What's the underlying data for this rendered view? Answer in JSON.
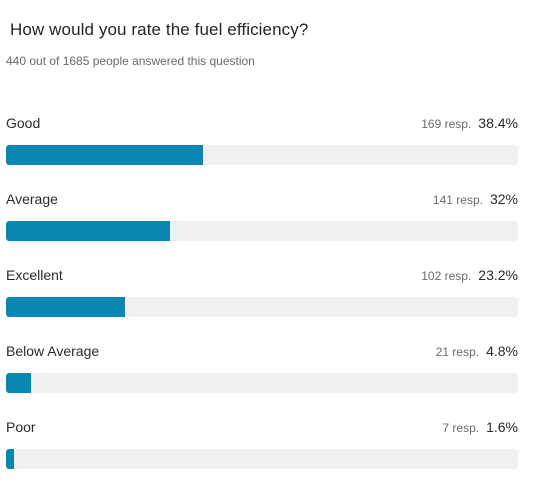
{
  "question": {
    "title": "How would you rate the fuel efficiency?",
    "subtitle": "440 out of 1685 people answered this question"
  },
  "answers": [
    {
      "label": "Good",
      "count": "169 resp.",
      "percent": "38.4%",
      "fraction": 0.384
    },
    {
      "label": "Average",
      "count": "141 resp.",
      "percent": "32%",
      "fraction": 0.32
    },
    {
      "label": "Excellent",
      "count": "102 resp.",
      "percent": "23.2%",
      "fraction": 0.232
    },
    {
      "label": "Below Average",
      "count": "21 resp.",
      "percent": "4.8%",
      "fraction": 0.048
    },
    {
      "label": "Poor",
      "count": "7 resp.",
      "percent": "1.6%",
      "fraction": 0.016
    }
  ],
  "colors": {
    "bar_fill": "#0a86b3",
    "bar_track": "#f0f0f0"
  }
}
